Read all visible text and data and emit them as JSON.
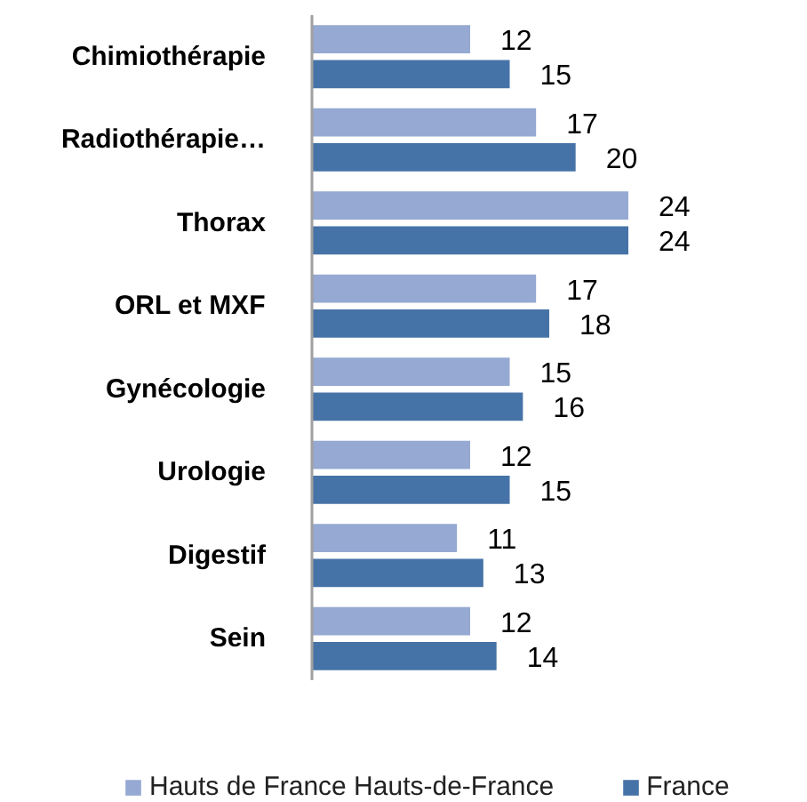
{
  "chart_data": {
    "type": "bar",
    "orientation": "horizontal",
    "categories": [
      "Chimiothérapie",
      "Radiothérapie…",
      "Thorax",
      "ORL et MXF",
      "Gynécologie",
      "Urologie",
      "Digestif",
      "Sein"
    ],
    "series": [
      {
        "name": "Hauts de France Hauts-de-France",
        "color": "#95a9d2",
        "values": [
          12,
          17,
          24,
          17,
          15,
          12,
          11,
          12
        ]
      },
      {
        "name": "France",
        "color": "#4673a7",
        "values": [
          15,
          20,
          24,
          18,
          16,
          15,
          13,
          14
        ]
      }
    ],
    "data_labels": true,
    "legend": "bottom",
    "tick_labels": "y"
  }
}
